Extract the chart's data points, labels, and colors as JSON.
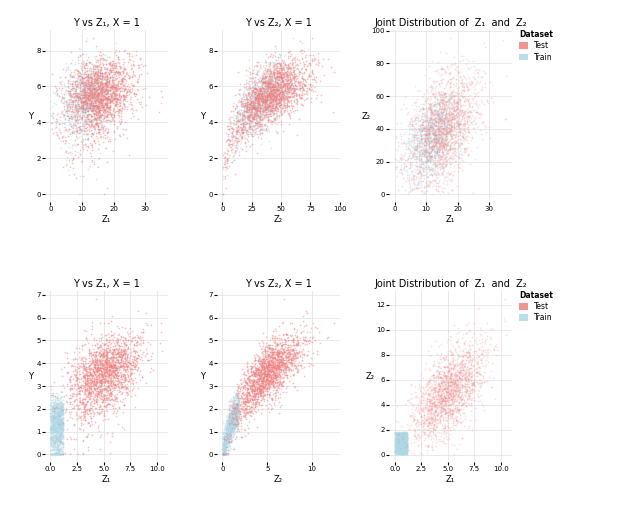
{
  "seed": 42,
  "n_test": 2000,
  "n_train": 1000,
  "red_color": "#F08080",
  "blue_color": "#ADD8E6",
  "contour_color": "#CC3333",
  "background": "white",
  "grid_color": "#E0E0E0",
  "titles_row1": [
    "Y vs Z₁, X = 1",
    "Y vs Z₂, X = 1",
    "Joint Distribution of  Z₁  and  Z₂"
  ],
  "titles_row2": [
    "Y vs Z₁, X = 1",
    "Y vs Z₂, X = 1",
    "Joint Distribution of  Z₁  and  Z₂"
  ],
  "xlabel_row1": [
    "Z₁",
    "Z₂",
    "Z₁"
  ],
  "xlabel_row2": [
    "Z₁",
    "Z₂",
    "Z₁"
  ],
  "ylabel_left": "Y",
  "ylabel_joint": "Z₂",
  "legend_title": "Dataset",
  "legend_test": "Test",
  "legend_train": "Train",
  "title_fontsize": 7,
  "label_fontsize": 6,
  "tick_fontsize": 5
}
